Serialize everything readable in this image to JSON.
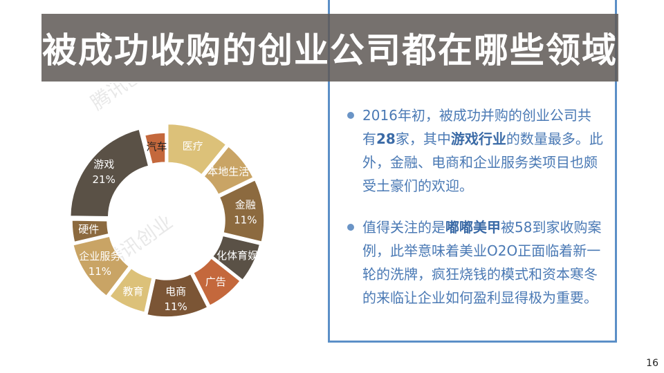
{
  "title": "被成功收购的创业公司都在哪些领域",
  "watermark": "腾讯创业",
  "page_number": "16",
  "bullets": [
    {
      "segments": [
        {
          "text": "2016年初，被成功并购的创业公司共有",
          "bold": false
        },
        {
          "text": "28",
          "bold": true
        },
        {
          "text": "家，其中",
          "bold": false
        },
        {
          "text": "游戏行业",
          "bold": true
        },
        {
          "text": "的数量最多。此外，金融、电商和企业服务类项目也颇受土豪们的欢迎。",
          "bold": false
        }
      ]
    },
    {
      "segments": [
        {
          "text": "值得关注的是",
          "bold": false
        },
        {
          "text": "嘟嘟美甲",
          "bold": true
        },
        {
          "text": "被58到家收购案例，此举意味着美业O2O正面临着新一轮的洗牌，疯狂烧钱的模式和资本寒冬的来临让企业如何盈利显得极为重要。",
          "bold": false
        }
      ]
    }
  ],
  "chart_data": {
    "type": "pie",
    "variant": "donut",
    "start_angle_deg": 0,
    "slices": [
      {
        "name": "医疗",
        "percent": 11,
        "label": "医疗",
        "color": "#dcc179",
        "text_color": "#ffffff"
      },
      {
        "name": "本地生活",
        "percent": 7,
        "label": "本地生活",
        "color": "#c9a465",
        "text_color": "#ffffff"
      },
      {
        "name": "金融",
        "percent": 11,
        "label": "金融\n11%",
        "color": "#8c6a3f",
        "text_color": "#ffffff"
      },
      {
        "name": "文化体育娱乐",
        "percent": 7,
        "label": "文化体育娱乐",
        "color": "#5a5146",
        "text_color": "#ffffff"
      },
      {
        "name": "广告",
        "percent": 7,
        "label": "广告",
        "color": "#c4683c",
        "text_color": "#ffffff"
      },
      {
        "name": "电商",
        "percent": 11,
        "label": "电商\n11%",
        "color": "#7b5535",
        "text_color": "#ffffff"
      },
      {
        "name": "教育",
        "percent": 7,
        "label": "教育",
        "color": "#dcc179",
        "text_color": "#ffffff"
      },
      {
        "name": "企业服务",
        "percent": 11,
        "label": "企业服务\n11%",
        "color": "#c9a465",
        "text_color": "#ffffff"
      },
      {
        "name": "硬件",
        "percent": 4,
        "label": "硬件",
        "color": "#8c6a3f",
        "text_color": "#ffffff"
      },
      {
        "name": "游戏",
        "percent": 21,
        "label": "游戏\n21%",
        "color": "#5a5146",
        "text_color": "#ffffff"
      },
      {
        "name": "汽车",
        "percent": 4,
        "label": "汽车",
        "color": "#c4683c",
        "text_color": "#222222"
      }
    ]
  }
}
